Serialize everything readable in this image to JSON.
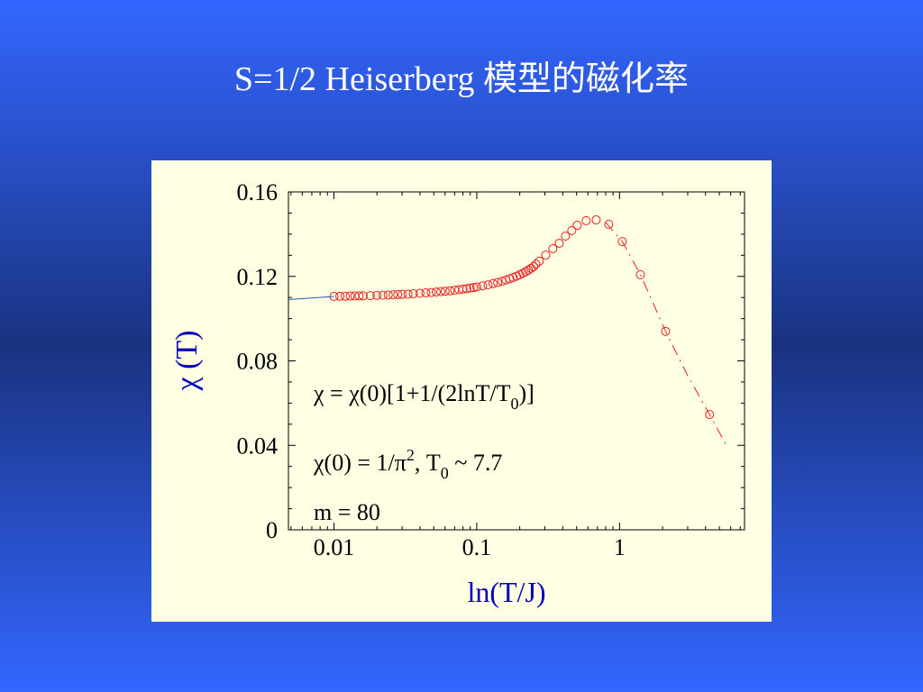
{
  "chart_data": {
    "type": "scatter",
    "title": "S=1/2 Heiserberg 模型的磁化率",
    "xlabel": "ln(T/J)",
    "ylabel": "χ (T)",
    "xscale": "log",
    "xlim": [
      0.0048,
      7.5
    ],
    "ylim": [
      0,
      0.16
    ],
    "xticks": [
      0.01,
      0.1,
      1
    ],
    "yticks": [
      0,
      0.04,
      0.08,
      0.12,
      0.16
    ],
    "xminorticks": [
      0.005,
      0.006,
      0.007,
      0.008,
      0.009,
      0.02,
      0.03,
      0.04,
      0.05,
      0.06,
      0.07,
      0.08,
      0.09,
      0.2,
      0.3,
      0.4,
      0.5,
      0.6,
      0.7,
      0.8,
      0.9,
      2,
      3,
      4,
      5,
      6,
      7
    ],
    "yminorticks": [
      0.01,
      0.02,
      0.03,
      0.05,
      0.06,
      0.07,
      0.09,
      0.1,
      0.11,
      0.13,
      0.14,
      0.15
    ],
    "series": [
      {
        "style": "markers",
        "color": "#e82020",
        "x": [
          0.01,
          0.011,
          0.012,
          0.013,
          0.014,
          0.015,
          0.016,
          0.018,
          0.02,
          0.022,
          0.024,
          0.026,
          0.028,
          0.03,
          0.033,
          0.036,
          0.04,
          0.044,
          0.048,
          0.052,
          0.056,
          0.06,
          0.065,
          0.07,
          0.075,
          0.08,
          0.085,
          0.09,
          0.095,
          0.1,
          0.11,
          0.12,
          0.13,
          0.14,
          0.15,
          0.16,
          0.17,
          0.18,
          0.19,
          0.2,
          0.21,
          0.22,
          0.23,
          0.24,
          0.25,
          0.26,
          0.274,
          0.304,
          0.341,
          0.378,
          0.418,
          0.463,
          0.505,
          0.584,
          0.686,
          0.84,
          1.045,
          1.4,
          2.1,
          4.27
        ],
        "values": [
          0.1105,
          0.1106,
          0.1106,
          0.1107,
          0.1107,
          0.1108,
          0.1108,
          0.1109,
          0.111,
          0.1111,
          0.1112,
          0.1113,
          0.1114,
          0.1115,
          0.1116,
          0.1118,
          0.112,
          0.1122,
          0.1124,
          0.1126,
          0.1128,
          0.113,
          0.1132,
          0.1135,
          0.1137,
          0.114,
          0.1142,
          0.1145,
          0.1147,
          0.115,
          0.1155,
          0.116,
          0.1166,
          0.1171,
          0.1177,
          0.1183,
          0.1189,
          0.1195,
          0.1201,
          0.1208,
          0.1215,
          0.1222,
          0.123,
          0.1238,
          0.1246,
          0.1258,
          0.1272,
          0.1301,
          0.1331,
          0.1357,
          0.1391,
          0.1417,
          0.1442,
          0.1464,
          0.1468,
          0.1447,
          0.1365,
          0.1208,
          0.094,
          0.0546
        ]
      },
      {
        "style": "solid",
        "color": "#3050c0",
        "x": [
          0.0048,
          0.01
        ],
        "values": [
          0.109,
          0.1105
        ]
      },
      {
        "style": "dashed",
        "color": "#e82020",
        "x": [
          0.8,
          1.045,
          1.4,
          2.1,
          3,
          4.27,
          5.6
        ],
        "values": [
          0.1455,
          0.1365,
          0.1208,
          0.094,
          0.073,
          0.0546,
          0.04
        ]
      }
    ],
    "annotations": [
      [
        {
          "text": "χ = χ(0)[1+1/(2lnT/T"
        },
        {
          "text": "0",
          "shift": "sub"
        },
        {
          "text": ")]"
        }
      ],
      [
        {
          "text": "χ(0) = 1/π"
        },
        {
          "text": "2",
          "shift": "sup"
        },
        {
          "text": ",  T"
        },
        {
          "text": "0",
          "shift": "sub"
        },
        {
          "text": " ~ 7.7"
        }
      ],
      [
        {
          "text": "m = 80"
        }
      ]
    ]
  }
}
